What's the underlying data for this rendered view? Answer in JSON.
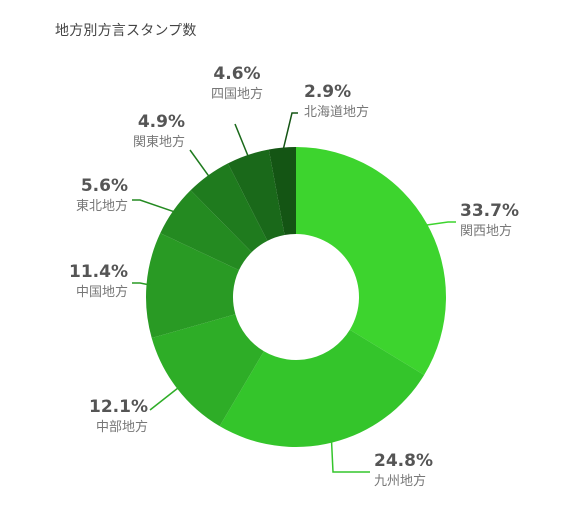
{
  "chart_data": {
    "type": "pie",
    "title": "地方別方言スタンプ数",
    "donut": true,
    "unit": "%",
    "categories": [
      "関西地方",
      "九州地方",
      "中部地方",
      "中国地方",
      "東北地方",
      "関東地方",
      "四国地方",
      "北海道地方"
    ],
    "values": [
      33.7,
      24.8,
      12.1,
      11.4,
      5.6,
      4.9,
      4.6,
      2.9
    ],
    "value_labels": [
      "33.7%",
      "24.8%",
      "12.1%",
      "11.4%",
      "5.6%",
      "4.9%",
      "4.6%",
      "2.9%"
    ],
    "colors": [
      "#3dd42e",
      "#34c52b",
      "#2ead27",
      "#299a24",
      "#248a21",
      "#1f7b1e",
      "#1a691a",
      "#145514"
    ],
    "legend": "none"
  }
}
